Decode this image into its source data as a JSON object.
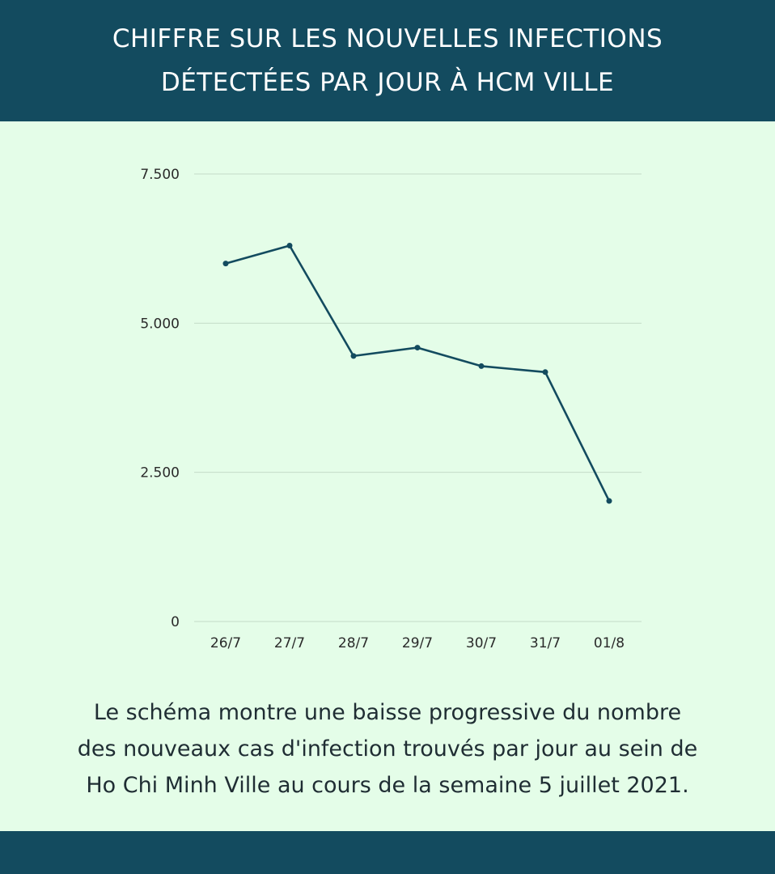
{
  "header": {
    "title_line1": "CHIFFRE SUR LES NOUVELLES INFECTIONS",
    "title_line2": "DÉTECTÉES PAR JOUR À HCM VILLE"
  },
  "caption": {
    "line1": "Le schéma montre une baisse progressive du nombre",
    "line2": "des nouveaux cas d'infection trouvés par jour au sein de",
    "line3": "Ho Chi Minh Ville au cours de la semaine 5 juillet 2021."
  },
  "colors": {
    "header_bg": "#134b5f",
    "background": "#e4fde8",
    "line": "#134b5f",
    "grid": "#c5dcc9"
  },
  "chart_data": {
    "type": "line",
    "categories": [
      "26/7",
      "27/7",
      "28/7",
      "29/7",
      "30/7",
      "31/7",
      "01/8"
    ],
    "series": [
      {
        "values": [
          6000,
          6300,
          4450,
          4590,
          4280,
          4180,
          2020
        ]
      }
    ],
    "ylim": [
      0,
      7500
    ],
    "yticks": [
      0,
      2500,
      5000,
      7500
    ],
    "ytick_labels": [
      "0",
      "2.500",
      "5.000",
      "7.500"
    ],
    "grid": true,
    "title": "",
    "xlabel": "",
    "ylabel": ""
  }
}
